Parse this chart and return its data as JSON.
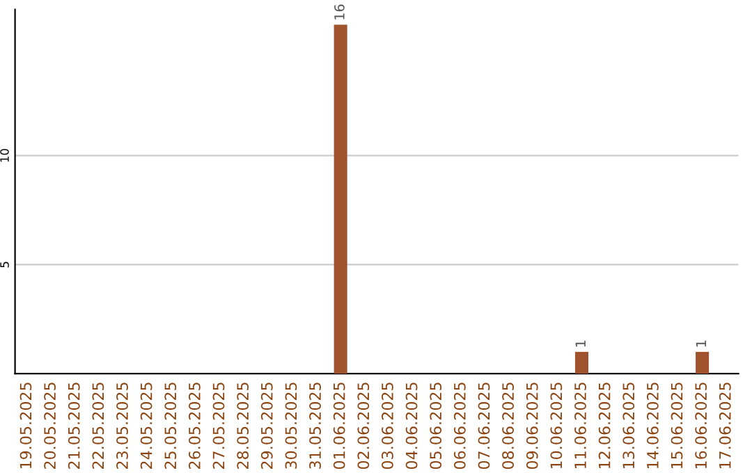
{
  "chart_data": {
    "type": "bar",
    "categories": [
      "19.05.2025",
      "20.05.2025",
      "21.05.2025",
      "22.05.2025",
      "23.05.2025",
      "24.05.2025",
      "25.05.2025",
      "26.05.2025",
      "27.05.2025",
      "28.05.2025",
      "29.05.2025",
      "30.05.2025",
      "31.05.2025",
      "01.06.2025",
      "02.06.2025",
      "03.06.2025",
      "04.06.2025",
      "05.06.2025",
      "06.06.2025",
      "07.06.2025",
      "08.06.2025",
      "09.06.2025",
      "10.06.2025",
      "11.06.2025",
      "12.06.2025",
      "13.06.2025",
      "14.06.2025",
      "15.06.2025",
      "16.06.2025",
      "17.06.2025"
    ],
    "values": [
      0,
      0,
      0,
      0,
      0,
      0,
      0,
      0,
      0,
      0,
      0,
      0,
      0,
      16,
      0,
      0,
      0,
      0,
      0,
      0,
      0,
      0,
      0,
      1,
      0,
      0,
      0,
      0,
      1,
      0
    ],
    "value_labels": [
      null,
      null,
      null,
      null,
      null,
      null,
      null,
      null,
      null,
      null,
      null,
      null,
      null,
      "16",
      null,
      null,
      null,
      null,
      null,
      null,
      null,
      null,
      null,
      "1",
      null,
      null,
      null,
      null,
      "1",
      null
    ],
    "color": "#a0522d",
    "ylim": [
      0,
      16.7
    ],
    "yticks": [
      5,
      10
    ],
    "grid": "y"
  }
}
